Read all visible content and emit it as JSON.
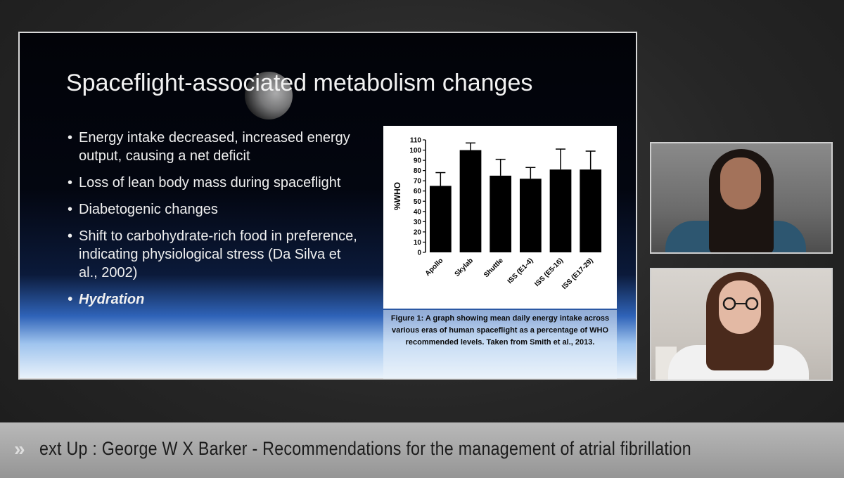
{
  "slide": {
    "title": "Spaceflight-associated metabolism changes",
    "bullets": [
      "Energy intake decreased, increased energy output, causing a net deficit",
      "Loss of lean body mass during spaceflight",
      "Diabetogenic changes",
      "Shift to carbohydrate-rich food in preference, indicating physiological stress (Da Silva et al., 2002)",
      "Hydration"
    ],
    "caption": "Figure 1: A graph showing mean daily energy intake across various eras of human spaceflight as a percentage of WHO recommended levels. Taken from Smith et al., 2013."
  },
  "chart_data": {
    "type": "bar",
    "categories": [
      "Apollo",
      "Skylab",
      "Shuttle",
      "ISS (E1-4)",
      "ISS (E5-16)",
      "ISS (E17-29)"
    ],
    "values": [
      65,
      100,
      75,
      72,
      81,
      81
    ],
    "errors": [
      13,
      7,
      16,
      11,
      20,
      18
    ],
    "ylabel": "%WHO",
    "ylim": [
      0,
      110
    ],
    "yticks": [
      0,
      10,
      20,
      30,
      40,
      50,
      60,
      70,
      80,
      90,
      100,
      110
    ],
    "grid": false
  },
  "ticker": {
    "icon": "double-chevron-icon",
    "text": "ext Up : George W X Barker - Recommendations for the management of atrial fibrillation"
  },
  "colors": {
    "bar": "#000000",
    "ticker_bg": "#a7a7a7",
    "slide_border": "#d8d8d8"
  }
}
